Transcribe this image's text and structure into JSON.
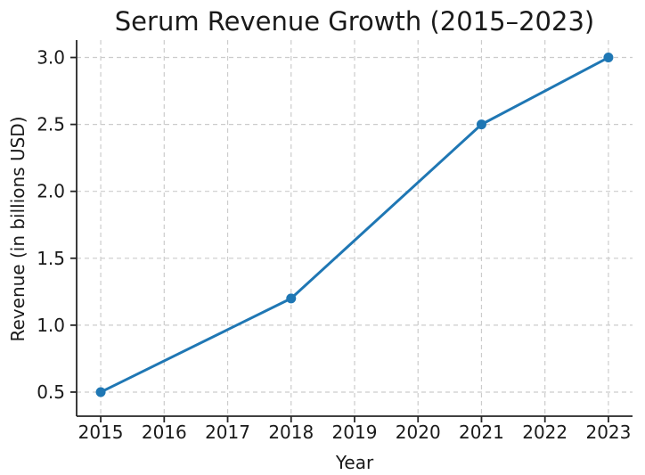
{
  "chart_data": {
    "type": "line",
    "title": "Serum Revenue Growth (2015–2023)",
    "xlabel": "Year",
    "ylabel": "Revenue (in billions USD)",
    "x": [
      2015,
      2018,
      2021,
      2023
    ],
    "y": [
      0.5,
      1.2,
      2.5,
      3.0
    ],
    "xticks": [
      2015,
      2016,
      2017,
      2018,
      2019,
      2020,
      2021,
      2022,
      2023
    ],
    "yticks": [
      0.5,
      1.0,
      1.5,
      2.0,
      2.5,
      3.0
    ],
    "xlim": [
      2014.62,
      2023.38
    ],
    "ylim": [
      0.32,
      3.13
    ],
    "grid": true,
    "grid_linestyle": "dashed",
    "legend_position": "none",
    "colors": {
      "line": "#1f77b4",
      "marker": "#1f77b4",
      "grid": "#cccccc",
      "spine": "#262626",
      "text": "#1a1a1a",
      "background": "#ffffff"
    }
  }
}
